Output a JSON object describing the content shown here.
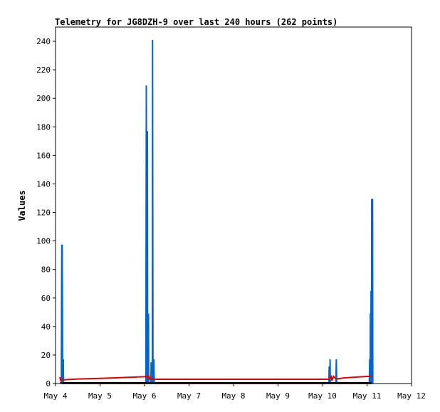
{
  "chart_data": {
    "type": "line",
    "title": "Telemetry for JG8DZH-9 over last 240 hours (262 points)",
    "xlabel": "",
    "ylabel": "Values",
    "ylim": [
      0,
      250
    ],
    "xlim": [
      0,
      8
    ],
    "yticks": [
      0,
      20,
      40,
      60,
      80,
      100,
      120,
      140,
      160,
      180,
      200,
      220,
      240
    ],
    "xticks": [
      {
        "x": 0,
        "label": "May 4"
      },
      {
        "x": 1,
        "label": "May 5"
      },
      {
        "x": 2,
        "label": "May 6"
      },
      {
        "x": 3,
        "label": "May 7"
      },
      {
        "x": 4,
        "label": "May 8"
      },
      {
        "x": 5,
        "label": "May 9"
      },
      {
        "x": 6,
        "label": "May 10"
      },
      {
        "x": 7,
        "label": "May 11"
      },
      {
        "x": 8,
        "label": "May 12"
      }
    ],
    "grid": false,
    "legend": "none",
    "series": [
      {
        "color": "#0066cc",
        "style": "spikes",
        "points": [
          [
            0.13,
            0
          ],
          [
            0.14,
            97
          ],
          [
            0.15,
            97
          ],
          [
            0.16,
            0
          ],
          [
            0.17,
            0
          ],
          [
            0.175,
            17
          ],
          [
            0.18,
            0
          ],
          [
            2.03,
            0
          ],
          [
            2.04,
            209
          ],
          [
            2.05,
            0
          ],
          [
            2.06,
            0
          ],
          [
            2.065,
            177
          ],
          [
            2.07,
            0
          ],
          [
            2.085,
            0
          ],
          [
            2.09,
            49
          ],
          [
            2.095,
            0
          ],
          [
            2.14,
            0
          ],
          [
            2.15,
            15
          ],
          [
            2.16,
            0
          ],
          [
            2.175,
            0
          ],
          [
            2.18,
            241
          ],
          [
            2.19,
            0
          ],
          [
            2.205,
            0
          ],
          [
            2.21,
            17
          ],
          [
            2.22,
            0
          ],
          [
            6.14,
            0
          ],
          [
            6.15,
            12
          ],
          [
            6.155,
            0
          ],
          [
            6.165,
            0
          ],
          [
            6.17,
            17
          ],
          [
            6.175,
            0
          ],
          [
            6.3,
            0
          ],
          [
            6.31,
            17
          ],
          [
            6.32,
            0
          ],
          [
            7.05,
            0
          ],
          [
            7.06,
            17
          ],
          [
            7.065,
            0
          ],
          [
            7.07,
            0
          ],
          [
            7.075,
            49
          ],
          [
            7.08,
            0
          ],
          [
            7.085,
            0
          ],
          [
            7.09,
            65
          ],
          [
            7.095,
            0
          ],
          [
            7.1,
            0
          ],
          [
            7.105,
            129
          ],
          [
            7.125,
            129
          ],
          [
            7.13,
            0
          ]
        ]
      },
      {
        "color": "#dd0000",
        "style": "line",
        "points": [
          [
            0.1,
            4.5
          ],
          [
            0.11,
            2.5
          ],
          [
            0.5,
            3.2
          ],
          [
            1.0,
            3.6
          ],
          [
            1.5,
            4.2
          ],
          [
            2.0,
            4.8
          ],
          [
            2.05,
            5.2
          ],
          [
            2.06,
            3.5
          ],
          [
            2.1,
            5.2
          ],
          [
            2.12,
            3.0
          ],
          [
            2.5,
            3.0
          ],
          [
            3.0,
            3.0
          ],
          [
            4.0,
            3.0
          ],
          [
            5.0,
            3.0
          ],
          [
            6.0,
            3.0
          ],
          [
            6.15,
            3.0
          ],
          [
            6.2,
            5.0
          ],
          [
            6.21,
            2.0
          ],
          [
            6.25,
            5.0
          ],
          [
            6.3,
            3.2
          ],
          [
            6.5,
            4.0
          ],
          [
            6.8,
            4.6
          ],
          [
            7.0,
            5.0
          ],
          [
            7.1,
            5.0
          ]
        ]
      },
      {
        "color": "#000000",
        "style": "line",
        "points": [
          [
            0.1,
            0.5
          ],
          [
            7.1,
            0.5
          ]
        ]
      }
    ]
  }
}
